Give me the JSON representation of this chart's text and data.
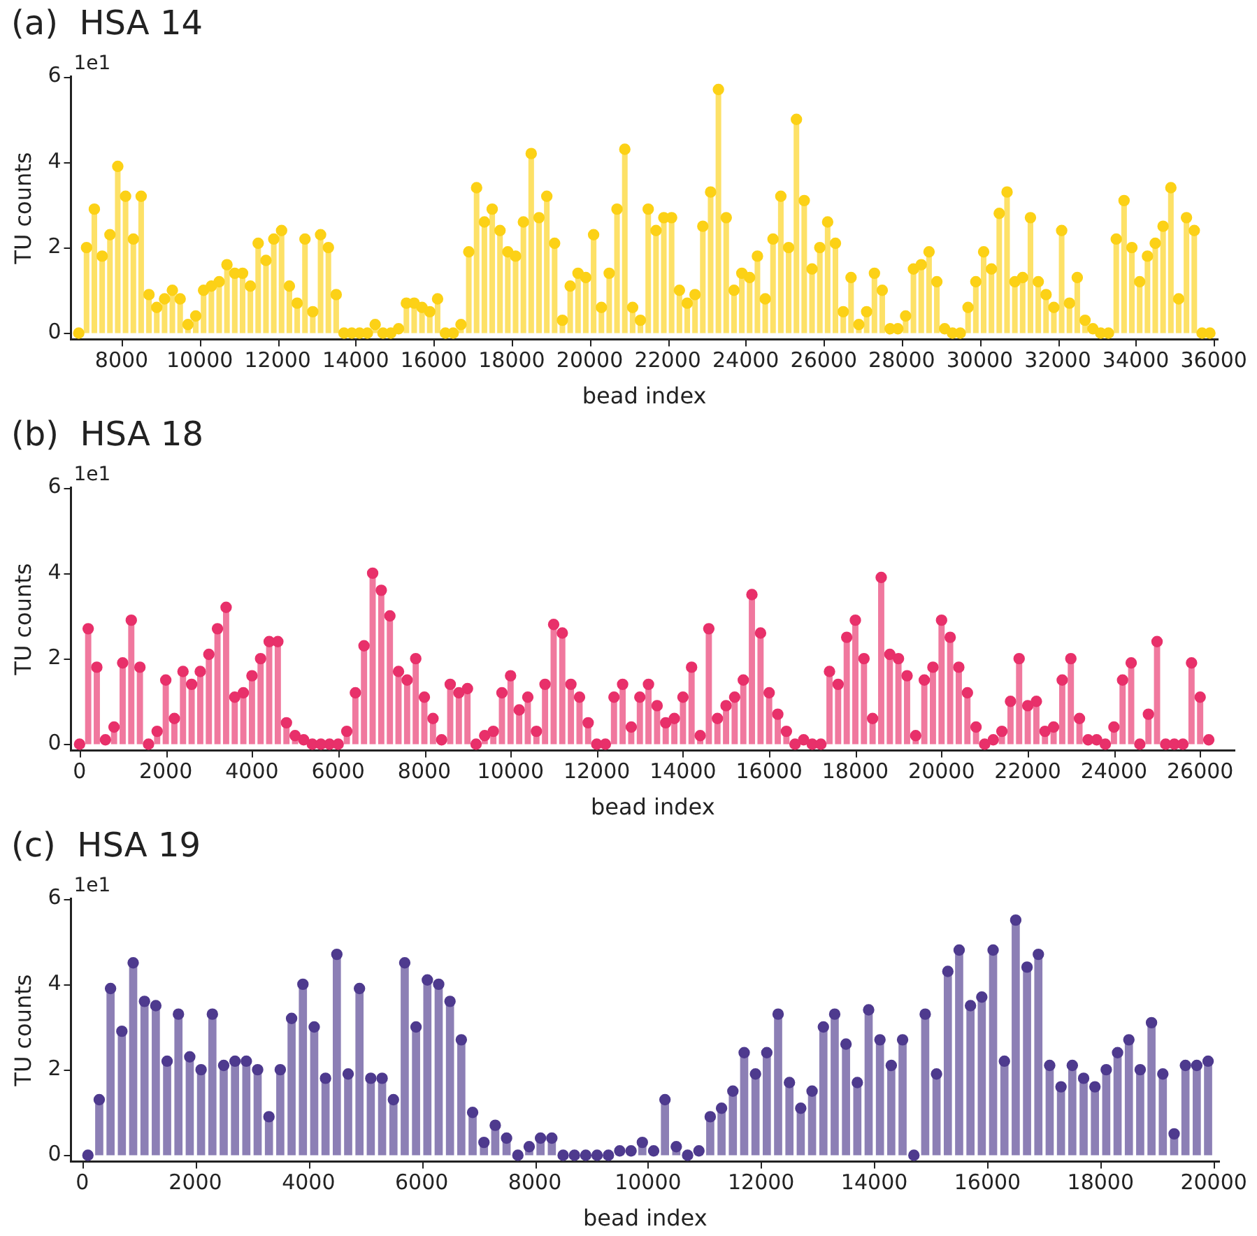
{
  "chart_data": [
    {
      "type": "lollipop",
      "title": "(a)  HSA 14",
      "xlabel": "bead index",
      "ylabel": "TU counts",
      "annotations": [
        "1e1"
      ],
      "marker": "circle",
      "xlim": [
        6700,
        36100
      ],
      "xticks": [
        8000,
        10000,
        12000,
        14000,
        16000,
        18000,
        20000,
        22000,
        24000,
        26000,
        28000,
        30000,
        32000,
        34000,
        36000
      ],
      "ylim": [
        -0.15,
        6
      ],
      "yticks": [
        0,
        2,
        4,
        6
      ],
      "x": [
        6900,
        7100,
        7300,
        7500,
        7700,
        7900,
        8100,
        8300,
        8500,
        8700,
        8900,
        9100,
        9300,
        9500,
        9700,
        9900,
        10100,
        10300,
        10500,
        10700,
        10900,
        11100,
        11300,
        11500,
        11700,
        11900,
        12100,
        12300,
        12500,
        12700,
        12900,
        13100,
        13300,
        13500,
        13700,
        13900,
        14100,
        14300,
        14500,
        14700,
        14900,
        15100,
        15300,
        15500,
        15700,
        15900,
        16100,
        16300,
        16500,
        16700,
        16900,
        17100,
        17300,
        17500,
        17700,
        17900,
        18100,
        18300,
        18500,
        18700,
        18900,
        19100,
        19300,
        19500,
        19700,
        19900,
        20100,
        20300,
        20500,
        20700,
        20900,
        21100,
        21300,
        21500,
        21700,
        21900,
        22100,
        22300,
        22500,
        22700,
        22900,
        23100,
        23300,
        23500,
        23700,
        23900,
        24100,
        24300,
        24500,
        24700,
        24900,
        25100,
        25300,
        25500,
        25700,
        25900,
        26100,
        26300,
        26500,
        26700,
        26900,
        27100,
        27300,
        27500,
        27700,
        27900,
        28100,
        28300,
        28500,
        28700,
        28900,
        29100,
        29300,
        29500,
        29700,
        29900,
        30100,
        30300,
        30500,
        30700,
        30900,
        31100,
        31300,
        31500,
        31700,
        31900,
        32100,
        32300,
        32500,
        32700,
        32900,
        33100,
        33300,
        33500,
        33700,
        33900,
        34100,
        34300,
        34500,
        34700,
        34900,
        35100,
        35300,
        35500,
        35700,
        35900
      ],
      "series": [
        {
          "color": "#fcd116",
          "values": [
            0,
            2.0,
            2.9,
            1.8,
            2.3,
            3.9,
            3.2,
            2.2,
            3.2,
            0.9,
            0.6,
            0.8,
            1.0,
            0.8,
            0.2,
            0.4,
            1.0,
            1.1,
            1.2,
            1.6,
            1.4,
            1.4,
            1.1,
            2.1,
            1.7,
            2.2,
            2.4,
            1.1,
            0.7,
            2.2,
            0.5,
            2.3,
            2.0,
            0.9,
            0,
            0,
            0,
            0,
            0.2,
            0,
            0,
            0.1,
            0.7,
            0.7,
            0.6,
            0.5,
            0.8,
            0,
            0,
            0.2,
            1.9,
            3.4,
            2.6,
            2.9,
            2.4,
            1.9,
            1.8,
            2.6,
            4.2,
            2.7,
            3.2,
            2.1,
            0.3,
            1.1,
            1.4,
            1.3,
            2.3,
            0.6,
            1.4,
            2.9,
            4.3,
            0.6,
            0.3,
            2.9,
            2.4,
            2.7,
            2.7,
            1.0,
            0.7,
            0.9,
            2.5,
            3.3,
            5.7,
            2.7,
            1.0,
            1.4,
            1.3,
            1.8,
            0.8,
            2.2,
            3.2,
            2.0,
            5.0,
            3.1,
            1.5,
            2.0,
            2.6,
            2.1,
            0.5,
            1.3,
            0.2,
            0.5,
            1.4,
            1.0,
            0.1,
            0.1,
            0.4,
            1.5,
            1.6,
            1.9,
            1.2,
            0.1,
            0,
            0,
            0.6,
            1.2,
            1.9,
            1.5,
            2.8,
            3.3,
            1.2,
            1.3,
            2.7,
            1.2,
            0.9,
            0.6,
            2.4,
            0.7,
            1.3,
            0.3,
            0.1,
            0,
            0,
            2.2,
            3.1,
            2.0,
            1.2,
            1.8,
            2.1,
            2.5,
            3.4,
            0.8,
            2.7,
            2.4,
            0,
            0
          ]
        }
      ]
    },
    {
      "type": "lollipop",
      "title": "(b)  HSA 18",
      "xlabel": "bead index",
      "ylabel": "TU counts",
      "annotations": [
        "1e1"
      ],
      "marker": "circle",
      "xlim": [
        -200,
        26800
      ],
      "xticks": [
        0,
        2000,
        4000,
        6000,
        8000,
        10000,
        12000,
        14000,
        16000,
        18000,
        20000,
        22000,
        24000,
        26000
      ],
      "ylim": [
        -0.15,
        6
      ],
      "yticks": [
        0,
        2,
        4,
        6
      ],
      "x": [
        0,
        200,
        400,
        600,
        800,
        1000,
        1200,
        1400,
        1600,
        1800,
        2000,
        2200,
        2400,
        2600,
        2800,
        3000,
        3200,
        3400,
        3600,
        3800,
        4000,
        4200,
        4400,
        4600,
        4800,
        5000,
        5200,
        5400,
        5600,
        5800,
        6000,
        6200,
        6400,
        6600,
        6800,
        7000,
        7200,
        7400,
        7600,
        7800,
        8000,
        8200,
        8400,
        8600,
        8800,
        9000,
        9200,
        9400,
        9600,
        9800,
        10000,
        10200,
        10400,
        10600,
        10800,
        11000,
        11200,
        11400,
        11600,
        11800,
        12000,
        12200,
        12400,
        12600,
        12800,
        13000,
        13200,
        13400,
        13600,
        13800,
        14000,
        14200,
        14400,
        14600,
        14800,
        15000,
        15200,
        15400,
        15600,
        15800,
        16000,
        16200,
        16400,
        16600,
        16800,
        17000,
        17200,
        17400,
        17600,
        17800,
        18000,
        18200,
        18400,
        18600,
        18800,
        19000,
        19200,
        19400,
        19600,
        19800,
        20000,
        20200,
        20400,
        20600,
        20800,
        21000,
        21200,
        21400,
        21600,
        21800,
        22000,
        22200,
        22400,
        22600,
        22800,
        23000,
        23200,
        23400,
        23600,
        23800,
        24000,
        24200,
        24400,
        24600,
        24800,
        25000,
        25200,
        25400,
        25600,
        25800,
        26000,
        26200
      ],
      "series": [
        {
          "color": "#e8306a",
          "values": [
            0,
            2.7,
            1.8,
            0.1,
            0.4,
            1.9,
            2.9,
            1.8,
            0,
            0.3,
            1.5,
            0.6,
            1.7,
            1.4,
            1.7,
            2.1,
            2.7,
            3.2,
            1.1,
            1.2,
            1.6,
            2.0,
            2.4,
            2.4,
            0.5,
            0.2,
            0.1,
            0,
            0,
            0,
            0,
            0.3,
            1.2,
            2.3,
            4.0,
            3.6,
            3.0,
            1.7,
            1.5,
            2.0,
            1.1,
            0.6,
            0.1,
            1.4,
            1.2,
            1.3,
            0,
            0.2,
            0.3,
            1.2,
            1.6,
            0.8,
            1.1,
            0.3,
            1.4,
            2.8,
            2.6,
            1.4,
            1.1,
            0.5,
            0,
            0,
            1.1,
            1.4,
            0.4,
            1.1,
            1.4,
            0.9,
            0.5,
            0.6,
            1.1,
            1.8,
            0.2,
            2.7,
            0.6,
            0.9,
            1.1,
            1.5,
            3.5,
            2.6,
            1.2,
            0.7,
            0.3,
            0,
            0.1,
            0,
            0,
            1.7,
            1.4,
            2.5,
            2.9,
            2.0,
            0.6,
            3.9,
            2.1,
            2.0,
            1.6,
            0.2,
            1.5,
            1.8,
            2.9,
            2.5,
            1.8,
            1.2,
            0.4,
            0,
            0.1,
            0.3,
            1.0,
            2.0,
            0.9,
            1.0,
            0.3,
            0.4,
            1.5,
            2.0,
            0.6,
            0.1,
            0.1,
            0,
            0.4,
            1.5,
            1.9,
            0,
            0.7,
            2.4,
            0,
            0,
            0,
            1.9,
            1.1,
            0.1
          ]
        }
      ]
    },
    {
      "type": "lollipop",
      "title": "(c)  HSA 19",
      "xlabel": "bead index",
      "ylabel": "TU counts",
      "annotations": [
        "1e1"
      ],
      "marker": "circle",
      "xlim": [
        -200,
        20100
      ],
      "xticks": [
        0,
        2000,
        4000,
        6000,
        8000,
        10000,
        12000,
        14000,
        16000,
        18000,
        20000
      ],
      "ylim": [
        -0.15,
        6
      ],
      "yticks": [
        0,
        2,
        4,
        6
      ],
      "x": [
        100,
        300,
        500,
        700,
        900,
        1100,
        1300,
        1500,
        1700,
        1900,
        2100,
        2300,
        2500,
        2700,
        2900,
        3100,
        3300,
        3500,
        3700,
        3900,
        4100,
        4300,
        4500,
        4700,
        4900,
        5100,
        5300,
        5500,
        5700,
        5900,
        6100,
        6300,
        6500,
        6700,
        6900,
        7100,
        7300,
        7500,
        7700,
        7900,
        8100,
        8300,
        8500,
        8700,
        8900,
        9100,
        9300,
        9500,
        9700,
        9900,
        10100,
        10300,
        10500,
        10700,
        10900,
        11100,
        11300,
        11500,
        11700,
        11900,
        12100,
        12300,
        12500,
        12700,
        12900,
        13100,
        13300,
        13500,
        13700,
        13900,
        14100,
        14300,
        14500,
        14700,
        14900,
        15100,
        15300,
        15500,
        15700,
        15900,
        16100,
        16300,
        16500,
        16700,
        16900,
        17100,
        17300,
        17500,
        17700,
        17900,
        18100,
        18300,
        18500,
        18700,
        18900,
        19100,
        19300,
        19500,
        19700,
        19900
      ],
      "series": [
        {
          "color": "#4e3a8e",
          "values": [
            0,
            1.3,
            3.9,
            2.9,
            4.5,
            3.6,
            3.5,
            2.2,
            3.3,
            2.3,
            2.0,
            3.3,
            2.1,
            2.2,
            2.2,
            2.0,
            0.9,
            2.0,
            3.2,
            4.0,
            3.0,
            1.8,
            4.7,
            1.9,
            3.9,
            1.8,
            1.8,
            1.3,
            4.5,
            3.0,
            4.1,
            4.0,
            3.6,
            2.7,
            1.0,
            0.3,
            0.7,
            0.4,
            0,
            0.2,
            0.4,
            0.4,
            0,
            0,
            0,
            0,
            0,
            0.1,
            0.1,
            0.3,
            0.1,
            1.3,
            0.2,
            0,
            0.1,
            0.9,
            1.1,
            1.5,
            2.4,
            1.9,
            2.4,
            3.3,
            1.7,
            1.1,
            1.5,
            3.0,
            3.3,
            2.6,
            1.7,
            3.4,
            2.7,
            2.1,
            2.7,
            0,
            3.3,
            1.9,
            4.3,
            4.8,
            3.5,
            3.7,
            4.8,
            2.2,
            5.5,
            4.4,
            4.7,
            2.1,
            1.6,
            2.1,
            1.8,
            1.6,
            2.0,
            2.4,
            2.7,
            2.0,
            3.1,
            1.9,
            0.5,
            2.1,
            2.1,
            2.2
          ]
        }
      ]
    }
  ]
}
